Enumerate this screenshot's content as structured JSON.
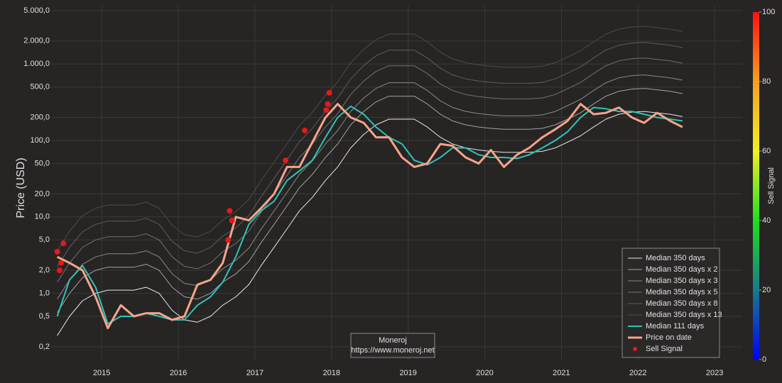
{
  "chart_data": {
    "type": "line",
    "y_label": "Price (USD)",
    "log_y": true,
    "grid": true,
    "legend_position": "bottom-right",
    "xlim": [
      2014.34,
      2023.36
    ],
    "xticks": [
      2015,
      2016,
      2017,
      2018,
      2019,
      2020,
      2021,
      2022,
      2023
    ],
    "ylim": [
      0.133,
      5800
    ],
    "yticks": [
      {
        "value": 0.2,
        "label": "0,2"
      },
      {
        "value": 0.5,
        "label": "0,5"
      },
      {
        "value": 1,
        "label": "1,0"
      },
      {
        "value": 2,
        "label": "2,0"
      },
      {
        "value": 5,
        "label": "5,0"
      },
      {
        "value": 10,
        "label": "10,0"
      },
      {
        "value": 20,
        "label": "20,0"
      },
      {
        "value": 50,
        "label": "50,0"
      },
      {
        "value": 100,
        "label": "100,0"
      },
      {
        "value": 200,
        "label": "200,0"
      },
      {
        "value": 500,
        "label": "500,0"
      },
      {
        "value": 1000,
        "label": "1.000,0"
      },
      {
        "value": 2000,
        "label": "2.000,0"
      },
      {
        "value": 5000,
        "label": "5.000,0"
      }
    ],
    "x": [
      2014.42,
      2014.58,
      2014.75,
      2014.92,
      2015.08,
      2015.25,
      2015.42,
      2015.58,
      2015.75,
      2015.92,
      2016.08,
      2016.25,
      2016.42,
      2016.58,
      2016.75,
      2016.92,
      2017.08,
      2017.25,
      2017.42,
      2017.58,
      2017.75,
      2017.92,
      2018.08,
      2018.25,
      2018.42,
      2018.58,
      2018.75,
      2018.92,
      2019.08,
      2019.25,
      2019.42,
      2019.58,
      2019.75,
      2019.92,
      2020.08,
      2020.25,
      2020.42,
      2020.58,
      2020.75,
      2020.92,
      2021.08,
      2021.25,
      2021.42,
      2021.58,
      2021.75,
      2021.92,
      2022.08,
      2022.25,
      2022.42,
      2022.58
    ],
    "series": [
      {
        "name": "Median 350 days",
        "color": "#e8e8e8",
        "width": 1,
        "values": [
          0.28,
          0.5,
          0.8,
          1.0,
          1.1,
          1.1,
          1.1,
          1.2,
          1.0,
          0.6,
          0.45,
          0.42,
          0.5,
          0.7,
          0.9,
          1.3,
          2.3,
          4,
          7,
          12,
          18,
          30,
          45,
          80,
          120,
          160,
          190,
          190,
          190,
          150,
          110,
          90,
          80,
          75,
          72,
          70,
          70,
          70,
          72,
          80,
          95,
          115,
          150,
          190,
          220,
          235,
          240,
          230,
          220,
          205
        ]
      },
      {
        "name": "Median 350 days x 2",
        "color": "#a3a3a3",
        "width": 1,
        "values": [
          0.56,
          1,
          1.6,
          2,
          2.2,
          2.2,
          2.2,
          2.4,
          2,
          1.2,
          0.9,
          0.84,
          1,
          1.4,
          1.8,
          2.6,
          4.6,
          8,
          14,
          24,
          36,
          60,
          90,
          160,
          240,
          320,
          380,
          380,
          380,
          300,
          220,
          180,
          160,
          150,
          144,
          140,
          140,
          140,
          144,
          160,
          190,
          230,
          300,
          380,
          440,
          470,
          480,
          460,
          440,
          410
        ]
      },
      {
        "name": "Median 350 days x 3",
        "color": "#8a8a8a",
        "width": 1,
        "values": [
          0.84,
          1.5,
          2.4,
          3,
          3.3,
          3.3,
          3.3,
          3.6,
          3,
          1.8,
          1.35,
          1.26,
          1.5,
          2.1,
          2.7,
          3.9,
          6.9,
          12,
          21,
          36,
          54,
          90,
          135,
          240,
          360,
          480,
          570,
          570,
          570,
          450,
          330,
          270,
          240,
          225,
          216,
          210,
          210,
          210,
          216,
          240,
          285,
          345,
          450,
          570,
          660,
          705,
          720,
          690,
          660,
          615
        ]
      },
      {
        "name": "Median 350 days x 5",
        "color": "#727272",
        "width": 1,
        "values": [
          1.4,
          2.5,
          4,
          5,
          5.5,
          5.5,
          5.5,
          6,
          5,
          3,
          2.25,
          2.1,
          2.5,
          3.5,
          4.5,
          6.5,
          11.5,
          20,
          35,
          60,
          90,
          150,
          225,
          400,
          600,
          800,
          950,
          950,
          950,
          750,
          550,
          450,
          400,
          375,
          360,
          350,
          350,
          350,
          360,
          400,
          475,
          575,
          750,
          950,
          1100,
          1175,
          1200,
          1150,
          1100,
          1025
        ]
      },
      {
        "name": "Median 350 days x 8",
        "color": "#5e5e5e",
        "width": 1,
        "values": [
          2.24,
          4,
          6.4,
          8,
          8.8,
          8.8,
          8.8,
          9.6,
          8,
          4.8,
          3.6,
          3.36,
          4,
          5.6,
          7.2,
          10.4,
          18.4,
          32,
          56,
          96,
          144,
          240,
          360,
          640,
          960,
          1280,
          1520,
          1520,
          1520,
          1200,
          880,
          720,
          640,
          600,
          576,
          560,
          560,
          560,
          576,
          640,
          760,
          920,
          1200,
          1520,
          1760,
          1880,
          1920,
          1840,
          1760,
          1640
        ]
      },
      {
        "name": "Median 350 days x 13",
        "color": "#4c4c4c",
        "width": 1,
        "values": [
          3.64,
          6.5,
          10.4,
          13,
          14.3,
          14.3,
          14.3,
          15.6,
          13,
          7.8,
          5.85,
          5.46,
          6.5,
          9.1,
          11.7,
          16.9,
          29.9,
          52,
          91,
          156,
          234,
          390,
          585,
          1040,
          1560,
          2080,
          2470,
          2470,
          2470,
          1950,
          1430,
          1170,
          1040,
          975,
          936,
          910,
          910,
          910,
          936,
          1040,
          1235,
          1495,
          1950,
          2470,
          2860,
          3055,
          3120,
          2990,
          2860,
          2665
        ]
      },
      {
        "name": "Median 111 days",
        "color": "#2ec4b6",
        "width": 2,
        "values": [
          0.5,
          1.5,
          2.3,
          1.2,
          0.4,
          0.5,
          0.5,
          0.55,
          0.5,
          0.45,
          0.45,
          0.7,
          0.9,
          1.4,
          3,
          8,
          12,
          16,
          30,
          40,
          55,
          110,
          200,
          280,
          220,
          150,
          110,
          90,
          55,
          48,
          60,
          80,
          80,
          65,
          60,
          60,
          58,
          65,
          80,
          100,
          130,
          200,
          270,
          260,
          240,
          240,
          220,
          200,
          190,
          180
        ]
      },
      {
        "name": "Price on date",
        "color": "#f4a58a",
        "width": 3,
        "values": [
          3.0,
          2.5,
          2.0,
          0.9,
          0.35,
          0.7,
          0.5,
          0.55,
          0.55,
          0.45,
          0.5,
          1.3,
          1.5,
          2.5,
          10,
          9,
          13,
          20,
          45,
          45,
          95,
          200,
          300,
          200,
          170,
          110,
          110,
          60,
          45,
          50,
          90,
          85,
          60,
          50,
          75,
          45,
          65,
          80,
          110,
          140,
          180,
          300,
          220,
          230,
          270,
          200,
          170,
          230,
          180,
          150
        ]
      }
    ],
    "sell_signals": {
      "name": "Sell Signal",
      "color": "#e31a1c",
      "x": [
        2014.42,
        2014.45,
        2014.47,
        2014.5,
        2016.65,
        2016.67,
        2016.7,
        2017.4,
        2017.65,
        2017.93,
        2017.95,
        2017.97
      ],
      "values": [
        3.5,
        2.0,
        2.5,
        4.5,
        5,
        12,
        9,
        55,
        135,
        250,
        300,
        420
      ]
    },
    "annotation": [
      "Moneroj",
      "https://www.moneroj.net"
    ],
    "colorbar": {
      "title": "Sell Signal",
      "range": [
        0,
        100
      ],
      "ticks": [
        0,
        20,
        40,
        60,
        80,
        100
      ],
      "colors": [
        "#0000ff",
        "#1a7a8a",
        "#1ee01e",
        "#f0f020",
        "#f5a020",
        "#ff1010"
      ]
    }
  }
}
